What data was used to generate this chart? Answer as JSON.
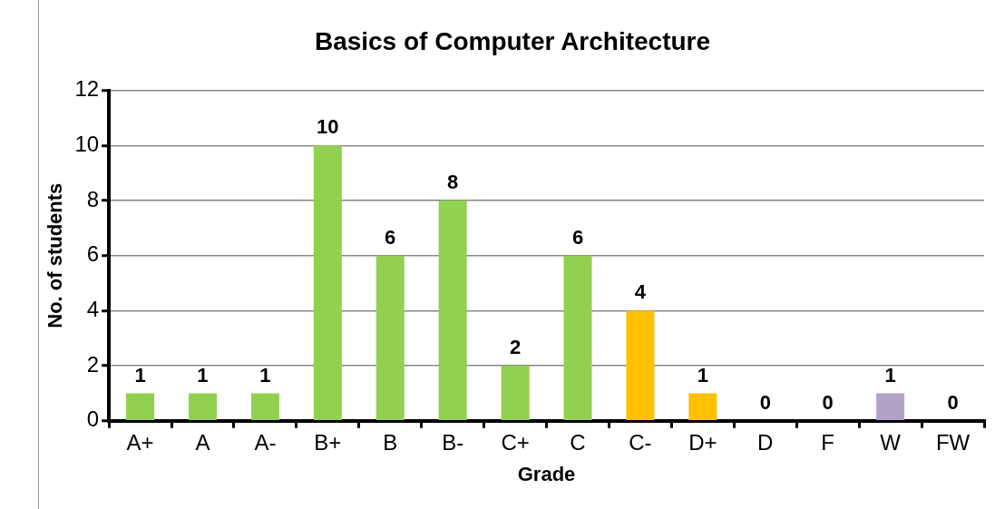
{
  "chart_data": {
    "type": "bar",
    "title": "Basics of Computer Architecture",
    "xlabel": "Grade",
    "ylabel": "No. of students",
    "categories": [
      "A+",
      "A",
      "A-",
      "B+",
      "B",
      "B-",
      "C+",
      "C",
      "C-",
      "D+",
      "D",
      "F",
      "W",
      "FW"
    ],
    "values": [
      1,
      1,
      1,
      10,
      6,
      8,
      2,
      6,
      4,
      1,
      0,
      0,
      1,
      0
    ],
    "colors": [
      "#92d050",
      "#92d050",
      "#92d050",
      "#92d050",
      "#92d050",
      "#92d050",
      "#92d050",
      "#92d050",
      "#ffc000",
      "#ffc000",
      "#ffc000",
      "#ffc000",
      "#b3a2c7",
      "#b3a2c7"
    ],
    "ylim": [
      0,
      12
    ],
    "yticks": [
      0,
      2,
      4,
      6,
      8,
      10,
      12
    ],
    "grid": "y",
    "legend": false,
    "data_labels": true
  }
}
